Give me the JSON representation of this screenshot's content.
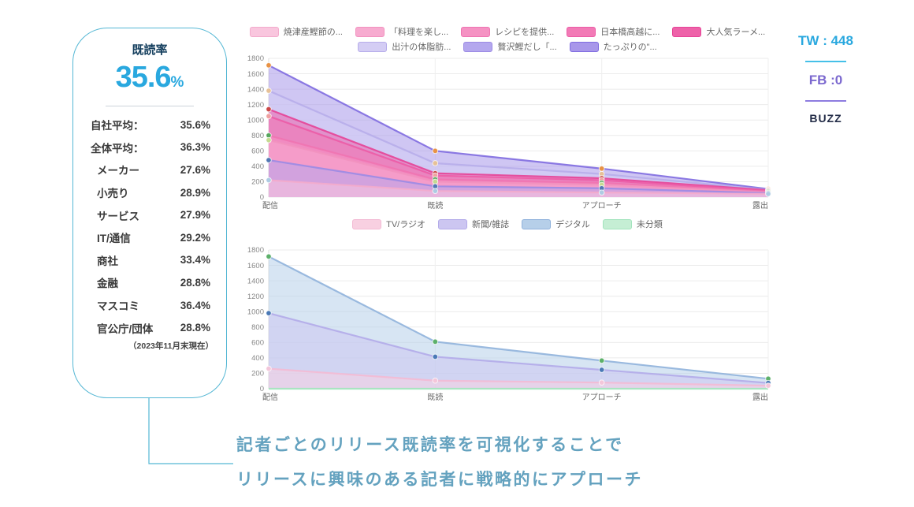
{
  "panel": {
    "title": "既読率",
    "main_value": "35.6",
    "main_unit": "%",
    "rows": [
      {
        "label": "自社平均：",
        "value": "35.6%"
      },
      {
        "label": "全体平均：",
        "value": "36.3%"
      },
      {
        "label": "メーカー",
        "value": "27.6%"
      },
      {
        "label": "小売り",
        "value": "28.9%"
      },
      {
        "label": "サービス",
        "value": "27.9%"
      },
      {
        "label": "IT/通信",
        "value": "29.2%"
      },
      {
        "label": "商社",
        "value": "33.4%"
      },
      {
        "label": "金融",
        "value": "28.8%"
      },
      {
        "label": "マスコミ",
        "value": "36.4%"
      },
      {
        "label": "官公庁/団体",
        "value": "28.8%"
      }
    ],
    "note": "（2023年11月末現在）"
  },
  "stats": {
    "tw": "TW : 448",
    "fb": "FB :0",
    "buzz": "BUZZ"
  },
  "caption": {
    "line1": "記者ごとのリリース既読率を可視化することで",
    "line2": "リリースに興味のある記者に戦略的にアプローチ"
  },
  "colors": {
    "accent_cyan": "#29a8df",
    "panel_border": "#54b7d4",
    "navy": "#16405f",
    "caption_teal": "#64a2bf",
    "fb_purple": "#7b68cf",
    "buzz_navy": "#232c47",
    "grid": "#ebebeb",
    "tick_text": "#888888"
  },
  "chart_data": [
    {
      "type": "area",
      "title": "",
      "categories": [
        "配信",
        "既読",
        "アプローチ",
        "露出"
      ],
      "ylim": [
        0,
        1800
      ],
      "ytick_step": 200,
      "grid": true,
      "legend_position": "top",
      "legend_rows": [
        5,
        3
      ],
      "series": [
        {
          "name": "焼津産鰹節の...",
          "fill": "#f9c6de",
          "border": "#f3abcc",
          "point": "#aecbe3",
          "values": [
            220,
            80,
            60,
            42
          ]
        },
        {
          "name": "「料理を楽し...",
          "fill": "#f7abd0",
          "border": "#f292bf",
          "point": "#c5da92",
          "values": [
            740,
            200,
            160,
            62
          ]
        },
        {
          "name": "レシピを提供...",
          "fill": "#f592c3",
          "border": "#ef74b1",
          "point": "#56a65e",
          "values": [
            800,
            230,
            185,
            72
          ]
        },
        {
          "name": "日本橋高越に...",
          "fill": "#f27ab6",
          "border": "#ec5ca6",
          "point": "#efa0a0",
          "values": [
            1050,
            280,
            220,
            82
          ]
        },
        {
          "name": "大人気ラーメ...",
          "fill": "#ee62a9",
          "border": "#e64497",
          "point": "#cb4848",
          "values": [
            1140,
            310,
            245,
            90
          ]
        },
        {
          "name": "出汁の体脂肪...",
          "fill": "#d4cdf4",
          "border": "#b7adea",
          "point": "#e6c198",
          "values": [
            1380,
            440,
            300,
            95
          ]
        },
        {
          "name": "贅沢鰹だし「...",
          "fill": "#b4a7ee",
          "border": "#9b8be4",
          "point": "#5379b4",
          "values": [
            480,
            140,
            115,
            52
          ]
        },
        {
          "name": "たっぷりの\"...",
          "fill": "#a897ea",
          "border": "#7f6ce0",
          "point": "#e89245",
          "values": [
            1710,
            600,
            370,
            105
          ]
        }
      ]
    },
    {
      "type": "area",
      "title": "",
      "categories": [
        "配信",
        "既読",
        "アプローチ",
        "露出"
      ],
      "ylim": [
        0,
        1800
      ],
      "ytick_step": 200,
      "grid": true,
      "legend_position": "top",
      "legend_rows": [
        4
      ],
      "series": [
        {
          "name": "TV/ラジオ",
          "fill": "#f8d0e1",
          "border": "#f3bad4",
          "point": "#f3c6da",
          "values": [
            260,
            105,
            80,
            40
          ]
        },
        {
          "name": "新聞/雑誌",
          "fill": "#ccc6f1",
          "border": "#b3abe9",
          "point": "#4a79b6",
          "values": [
            980,
            415,
            245,
            75
          ]
        },
        {
          "name": "デジタル",
          "fill": "#b6cfe9",
          "border": "#90b2dc",
          "point": "#5cb06a",
          "values": [
            1715,
            610,
            365,
            130
          ]
        },
        {
          "name": "未分類",
          "fill": "#c5eed4",
          "border": "#a2e4bd",
          "point": "#a2e4bd",
          "values": [
            0,
            0,
            0,
            0
          ]
        }
      ]
    }
  ]
}
